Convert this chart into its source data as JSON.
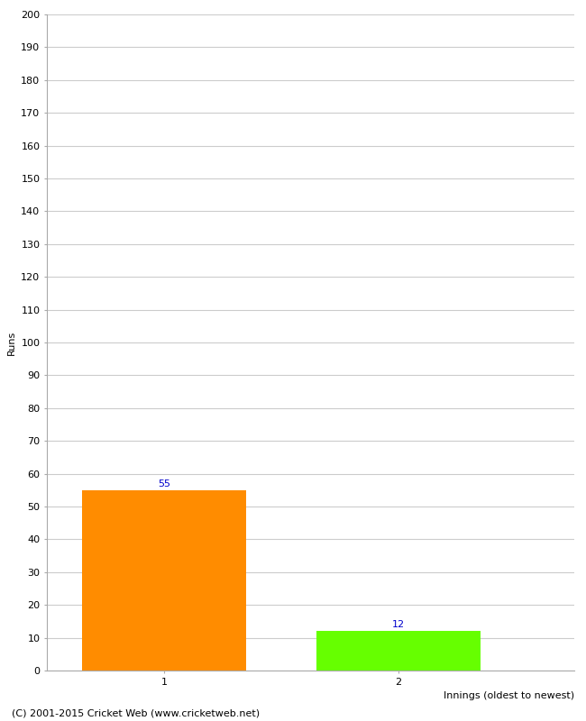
{
  "categories": [
    "1",
    "2"
  ],
  "values": [
    55,
    12
  ],
  "bar_colors": [
    "#FF8C00",
    "#66FF00"
  ],
  "xlabel": "Innings (oldest to newest)",
  "ylabel": "Runs",
  "ylim": [
    0,
    200
  ],
  "ytick_step": 10,
  "bar_label_color": "#0000CC",
  "bar_label_fontsize": 8,
  "tick_fontsize": 8,
  "axis_label_fontsize": 8,
  "footer_text": "(C) 2001-2015 Cricket Web (www.cricketweb.net)",
  "footer_fontsize": 8,
  "background_color": "#ffffff",
  "grid_color": "#cccccc"
}
